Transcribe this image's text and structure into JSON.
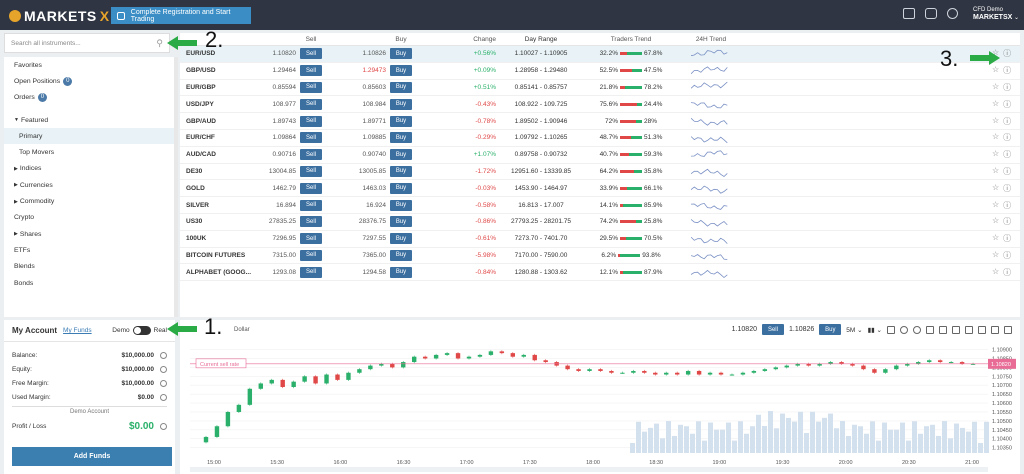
{
  "topbar": {
    "logo_text": "MARKETS",
    "logo_x": "X",
    "register_label": "Complete Registration and Start Trading",
    "account_type": "CFD Demo",
    "account_brand": "MARKETSX"
  },
  "search": {
    "placeholder": "Search all instruments..."
  },
  "sidebar": {
    "favorites": "Favorites",
    "open_positions": "Open Positions",
    "open_positions_count": "0",
    "orders": "Orders",
    "orders_count": "0",
    "featured": "Featured",
    "primary": "Primary",
    "top_movers": "Top Movers",
    "indices": "Indices",
    "currencies": "Currencies",
    "commodity": "Commodity",
    "crypto": "Crypto",
    "shares": "Shares",
    "etfs": "ETFs",
    "blends": "Blends",
    "bonds": "Bonds"
  },
  "account": {
    "title": "My Account",
    "funds_link": "My Funds",
    "demo_label": "Demo",
    "real_label": "Real",
    "balance_label": "Balance:",
    "balance": "$10,000.00",
    "equity_label": "Equity:",
    "equity": "$10,000.00",
    "free_margin_label": "Free Margin:",
    "free_margin": "$10,000.00",
    "used_margin_label": "Used Margin:",
    "used_margin": "$0.00",
    "section_label": "Demo Account",
    "pl_label": "Profit / Loss",
    "pl_value": "$0.00",
    "add_funds": "Add Funds"
  },
  "table": {
    "headers": {
      "sell": "Sell",
      "buy": "Buy",
      "change": "Change",
      "range": "Day Range",
      "traders": "Traders Trend",
      "trend": "24H Trend"
    },
    "sell_btn": "Sell",
    "buy_btn": "Buy",
    "rows": [
      {
        "name": "EUR/USD",
        "sell": "1.10820",
        "buy": "1.10826",
        "change": "+0.56%",
        "range": "1.10027 - 1.10905",
        "sellers": "32.2%",
        "buyers": "67.8%",
        "up": true
      },
      {
        "name": "GBP/USD",
        "sell": "1.29464",
        "buy": "1.29473",
        "change": "+0.09%",
        "range": "1.28958 - 1.29480",
        "sellers": "52.5%",
        "buyers": "47.5%",
        "up": true
      },
      {
        "name": "EUR/GBP",
        "sell": "0.85594",
        "buy": "0.85603",
        "change": "+0.51%",
        "range": "0.85141 - 0.85757",
        "sellers": "21.8%",
        "buyers": "78.2%",
        "up": true
      },
      {
        "name": "USD/JPY",
        "sell": "108.977",
        "buy": "108.984",
        "change": "-0.43%",
        "range": "108.922 - 109.725",
        "sellers": "75.6%",
        "buyers": "24.4%",
        "up": false
      },
      {
        "name": "GBP/AUD",
        "sell": "1.89743",
        "buy": "1.89771",
        "change": "-0.78%",
        "range": "1.89502 - 1.90946",
        "sellers": "72%",
        "buyers": "28%",
        "up": false
      },
      {
        "name": "EUR/CHF",
        "sell": "1.09864",
        "buy": "1.09885",
        "change": "-0.29%",
        "range": "1.09792 - 1.10265",
        "sellers": "48.7%",
        "buyers": "51.3%",
        "up": false
      },
      {
        "name": "AUD/CAD",
        "sell": "0.90716",
        "buy": "0.90740",
        "change": "+1.07%",
        "range": "0.89758 - 0.90732",
        "sellers": "40.7%",
        "buyers": "59.3%",
        "up": true
      },
      {
        "name": "DE30",
        "sell": "13004.85",
        "buy": "13005.85",
        "change": "-1.72%",
        "range": "12951.60 - 13339.85",
        "sellers": "64.2%",
        "buyers": "35.8%",
        "up": false
      },
      {
        "name": "GOLD",
        "sell": "1462.79",
        "buy": "1463.03",
        "change": "-0.03%",
        "range": "1453.90 - 1464.97",
        "sellers": "33.9%",
        "buyers": "66.1%",
        "up": false
      },
      {
        "name": "SILVER",
        "sell": "16.894",
        "buy": "16.924",
        "change": "-0.58%",
        "range": "16.813 - 17.007",
        "sellers": "14.1%",
        "buyers": "85.9%",
        "up": false
      },
      {
        "name": "US30",
        "sell": "27835.25",
        "buy": "28376.75",
        "change": "-0.86%",
        "range": "27793.25 - 28201.75",
        "sellers": "74.2%",
        "buyers": "25.8%",
        "up": false
      },
      {
        "name": "100UK",
        "sell": "7296.95",
        "buy": "7297.55",
        "change": "-0.61%",
        "range": "7273.70 - 7401.70",
        "sellers": "29.5%",
        "buyers": "70.5%",
        "up": false
      },
      {
        "name": "BITCOIN FUTURES",
        "sell": "7315.00",
        "buy": "7365.00",
        "change": "-5.98%",
        "range": "7170.00 - 7590.00",
        "sellers": "6.2%",
        "buyers": "93.8%",
        "up": false
      },
      {
        "name": "ALPHABET (GOOG...",
        "sell": "1293.08",
        "buy": "1294.58",
        "change": "-0.84%",
        "range": "1280.88 - 1303.62",
        "sellers": "12.1%",
        "buyers": "87.9%",
        "up": false
      }
    ]
  },
  "chart": {
    "instrument": "Dollar",
    "sell_price": "1.10820",
    "buy_price": "1.10826",
    "sell_btn": "Sell",
    "buy_btn": "Buy",
    "timeframe": "5M",
    "current_rate_label": "Current sell rate",
    "current_rate_value": "1.10820"
  },
  "chart_data": {
    "type": "candlestick",
    "x_ticks": [
      "15:00",
      "15:30",
      "16:00",
      "16:30",
      "17:00",
      "17:30",
      "18:00",
      "18:30",
      "19:00",
      "19:30",
      "20:00",
      "20:30",
      "21:00"
    ],
    "y_ticks": [
      "1.10900",
      "1.10850",
      "1.10800",
      "1.10750",
      "1.10700",
      "1.10650",
      "1.10600",
      "1.10550",
      "1.10500",
      "1.10450",
      "1.10400",
      "1.10350"
    ],
    "ylim": [
      1.1032,
      1.1092
    ],
    "close": [
      1.1041,
      1.1047,
      1.1055,
      1.1059,
      1.1068,
      1.1071,
      1.1073,
      1.1069,
      1.1072,
      1.1075,
      1.1071,
      1.1076,
      1.1073,
      1.1077,
      1.1079,
      1.1081,
      1.1082,
      1.108,
      1.1083,
      1.1086,
      1.1085,
      1.1087,
      1.1088,
      1.1085,
      1.1086,
      1.1087,
      1.1089,
      1.1088,
      1.1086,
      1.1087,
      1.1084,
      1.1083,
      1.1081,
      1.1079,
      1.1078,
      1.1079,
      1.1078,
      1.1077,
      1.1077,
      1.1078,
      1.1077,
      1.1076,
      1.1077,
      1.1076,
      1.1078,
      1.1076,
      1.1077,
      1.1076,
      1.1076,
      1.1077,
      1.1078,
      1.1079,
      1.108,
      1.1081,
      1.1082,
      1.1081,
      1.1082,
      1.1083,
      1.1082,
      1.1081,
      1.1079,
      1.1077,
      1.1079,
      1.1081,
      1.1082,
      1.1083,
      1.1084,
      1.1083,
      1.1083,
      1.1082,
      1.1082
    ]
  },
  "annotations": {
    "one": "1.",
    "two": "2.",
    "three": "3."
  },
  "colors": {
    "topbar": "#2f3542",
    "accent": "#3b8ec5",
    "button": "#3b6fa0",
    "up": "#2ab06a",
    "down": "#e04848",
    "rate_line": "#e86c96"
  }
}
